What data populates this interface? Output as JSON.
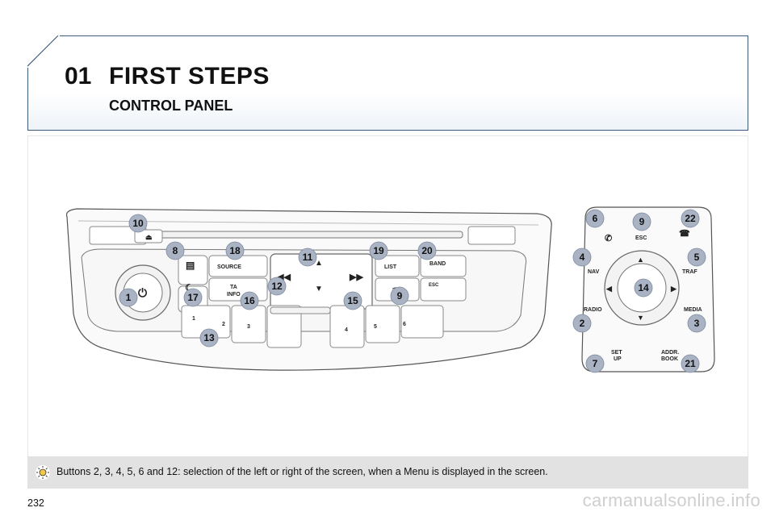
{
  "header": {
    "chapter_number": "01",
    "chapter_title": "FIRST STEPS",
    "section_title": "CONTROL PANEL"
  },
  "panel_labels": {
    "source": "SOURCE",
    "ta_info": "TA\nINFO",
    "list": "LIST",
    "band": "BAND",
    "esc_small": "ESC",
    "presets": [
      "1",
      "2",
      "3",
      "4",
      "5",
      "6"
    ]
  },
  "remote_labels": {
    "esc": "ESC",
    "nav": "NAV",
    "traf": "TRAF",
    "radio": "RADIO",
    "media": "MEDIA",
    "set_up": "SET\nUP",
    "addr_book": "ADDR.\nBOOK"
  },
  "callouts": [
    "10",
    "8",
    "18",
    "11",
    "19",
    "20",
    "1",
    "17",
    "16",
    "12",
    "15",
    "9",
    "13",
    "6",
    "9",
    "22",
    "4",
    "5",
    "14",
    "2",
    "3",
    "7",
    "21"
  ],
  "note": {
    "text": "Buttons 2, 3, 4, 5, 6 and 12: selection of the left or right of the screen, when a Menu is displayed in the screen."
  },
  "footer": {
    "page_number": "232",
    "watermark": "carmanualsonline.info"
  },
  "colors": {
    "frame": "#3c5a7a",
    "callout_fill": "#a9b3c4",
    "note_bg": "#e2e2e2"
  }
}
